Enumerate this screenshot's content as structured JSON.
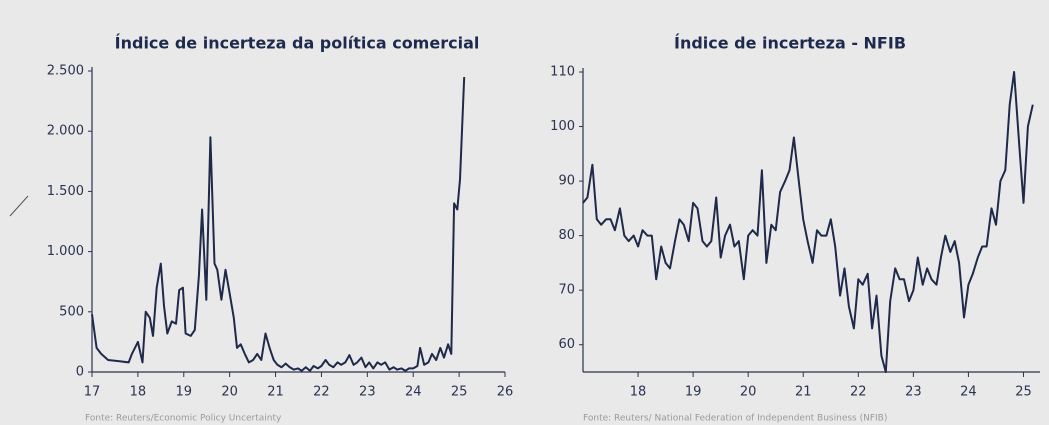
{
  "chart_data": [
    {
      "type": "line",
      "title": "Índice de incerteza da política comercial",
      "source": "Fonte: Reuters/Economic Policy Uncertainty",
      "color": "#1f2a4a",
      "x": [
        17.0,
        17.1,
        17.2,
        17.35,
        17.6,
        17.8,
        17.87,
        18.0,
        18.1,
        18.17,
        18.26,
        18.33,
        18.41,
        18.5,
        18.57,
        18.64,
        18.74,
        18.83,
        18.9,
        18.98,
        19.04,
        19.15,
        19.24,
        19.33,
        19.4,
        19.49,
        19.58,
        19.67,
        19.73,
        19.82,
        19.91,
        20.0,
        20.09,
        20.16,
        20.24,
        20.33,
        20.42,
        20.51,
        20.6,
        20.69,
        20.78,
        20.87,
        20.96,
        21.04,
        21.13,
        21.22,
        21.31,
        21.4,
        21.49,
        21.57,
        21.66,
        21.75,
        21.83,
        21.92,
        22.0,
        22.09,
        22.17,
        22.26,
        22.35,
        22.43,
        22.52,
        22.61,
        22.7,
        22.78,
        22.87,
        22.96,
        23.04,
        23.13,
        23.22,
        23.3,
        23.39,
        23.48,
        23.57,
        23.65,
        23.74,
        23.83,
        23.91,
        24.0,
        24.09,
        24.15,
        24.24,
        24.33,
        24.41,
        24.5,
        24.59,
        24.67,
        24.76,
        24.83,
        24.89,
        24.96,
        25.02,
        25.11
      ],
      "values": [
        480,
        200,
        150,
        100,
        90,
        80,
        150,
        250,
        80,
        500,
        450,
        300,
        700,
        900,
        550,
        320,
        420,
        400,
        680,
        700,
        320,
        300,
        350,
        800,
        1350,
        600,
        1950,
        900,
        850,
        600,
        850,
        650,
        450,
        200,
        230,
        150,
        80,
        100,
        150,
        100,
        320,
        200,
        100,
        60,
        40,
        70,
        40,
        20,
        30,
        10,
        40,
        10,
        50,
        30,
        50,
        100,
        60,
        40,
        80,
        60,
        80,
        140,
        60,
        80,
        120,
        40,
        80,
        30,
        80,
        60,
        80,
        20,
        40,
        20,
        30,
        10,
        30,
        30,
        50,
        200,
        60,
        80,
        150,
        100,
        200,
        120,
        230,
        150,
        1400,
        1350,
        1600,
        2450
      ],
      "xlim": [
        17,
        26
      ],
      "xticks": [
        17,
        18,
        19,
        20,
        21,
        22,
        23,
        24,
        25,
        26
      ],
      "ylim": [
        0,
        2500
      ],
      "yticks": [
        0,
        500,
        {
          "value": 1000,
          "label": "1.000"
        },
        {
          "value": 1500,
          "label": "1.500"
        },
        {
          "value": 2000,
          "label": "2.000"
        },
        {
          "value": 2500,
          "label": "2.500"
        }
      ]
    },
    {
      "type": "line",
      "title": "Índice de incerteza - NFIB",
      "source": "Fonte: Reuters/ National Federation of Independent Business (NFIB)",
      "color": "#1f2a4a",
      "x": [
        17.0,
        17.08,
        17.17,
        17.25,
        17.33,
        17.42,
        17.5,
        17.58,
        17.67,
        17.75,
        17.83,
        17.92,
        18.0,
        18.08,
        18.17,
        18.25,
        18.33,
        18.42,
        18.5,
        18.58,
        18.67,
        18.75,
        18.83,
        18.92,
        19.0,
        19.08,
        19.17,
        19.25,
        19.33,
        19.42,
        19.5,
        19.58,
        19.67,
        19.75,
        19.83,
        19.92,
        20.0,
        20.08,
        20.17,
        20.25,
        20.33,
        20.42,
        20.5,
        20.58,
        20.67,
        20.75,
        20.83,
        20.92,
        21.0,
        21.08,
        21.17,
        21.25,
        21.33,
        21.42,
        21.5,
        21.58,
        21.67,
        21.75,
        21.83,
        21.92,
        22.0,
        22.08,
        22.17,
        22.25,
        22.33,
        22.42,
        22.5,
        22.58,
        22.67,
        22.75,
        22.83,
        22.92,
        23.0,
        23.08,
        23.17,
        23.25,
        23.33,
        23.42,
        23.5,
        23.58,
        23.67,
        23.75,
        23.83,
        23.92,
        24.0,
        24.08,
        24.17,
        24.25,
        24.33,
        24.42,
        24.5,
        24.58,
        24.67,
        24.75,
        24.83,
        24.92,
        25.0,
        25.08,
        25.17
      ],
      "values": [
        86,
        87,
        93,
        83,
        82,
        83,
        83,
        81,
        85,
        80,
        79,
        80,
        78,
        81,
        80,
        80,
        72,
        78,
        75,
        74,
        79,
        83,
        82,
        79,
        86,
        85,
        79,
        78,
        79,
        87,
        76,
        80,
        82,
        78,
        79,
        72,
        80,
        81,
        80,
        92,
        75,
        82,
        81,
        88,
        90,
        92,
        98,
        90,
        83,
        79,
        75,
        81,
        80,
        80,
        83,
        78,
        69,
        74,
        67,
        63,
        72,
        71,
        73,
        63,
        69,
        58,
        55,
        68,
        74,
        72,
        72,
        68,
        70,
        76,
        71,
        74,
        72,
        71,
        76,
        80,
        77,
        79,
        75,
        65,
        71,
        73,
        76,
        78,
        78,
        85,
        82,
        90,
        92,
        104,
        110,
        97,
        86,
        100,
        104
      ],
      "xlim": [
        17,
        25.3
      ],
      "xticks": [
        18,
        19,
        20,
        21,
        22,
        23,
        24,
        25
      ],
      "ylim": [
        55,
        110
      ],
      "yticks": [
        60,
        70,
        80,
        90,
        100,
        110
      ]
    }
  ]
}
